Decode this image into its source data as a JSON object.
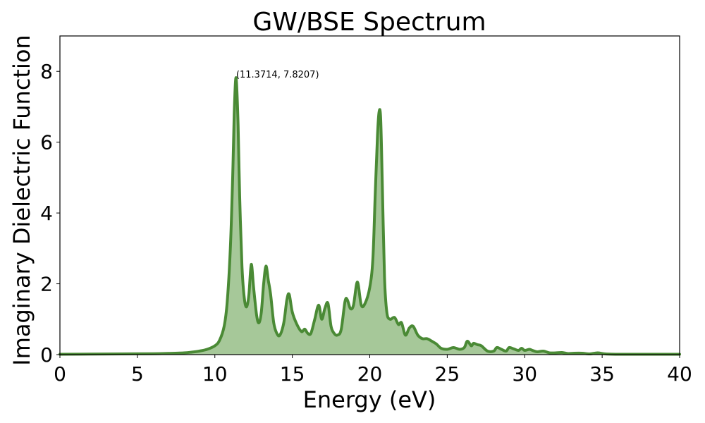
{
  "chart_data": {
    "type": "area",
    "title": "GW/BSE Spectrum",
    "xlabel": "Energy (eV)",
    "ylabel": "Imaginary Dielectric Function",
    "xlim": [
      0,
      40
    ],
    "ylim": [
      0,
      9
    ],
    "xticks": [
      0,
      5,
      10,
      15,
      20,
      25,
      30,
      35,
      40
    ],
    "yticks": [
      0,
      2,
      4,
      6,
      8
    ],
    "grid": false,
    "line_color": "#4a8a35",
    "fill_color": "#a6c899",
    "annotation": {
      "text": "(11.3714, 7.8207)",
      "x": 11.3714,
      "y": 7.8207
    },
    "series": [
      {
        "x": [
          0,
          2,
          4,
          6,
          7,
          8,
          8.5,
          9,
          9.5,
          10,
          10.3,
          10.6,
          10.8,
          11.0,
          11.15,
          11.25,
          11.37,
          11.5,
          11.6,
          11.75,
          11.9,
          12.05,
          12.2,
          12.35,
          12.5,
          12.7,
          12.85,
          13.0,
          13.15,
          13.3,
          13.45,
          13.6,
          13.8,
          14.0,
          14.2,
          14.45,
          14.65,
          14.8,
          15.0,
          15.3,
          15.6,
          15.8,
          16.0,
          16.2,
          16.45,
          16.7,
          16.9,
          17.1,
          17.3,
          17.5,
          17.7,
          17.9,
          18.15,
          18.4,
          18.55,
          18.75,
          18.95,
          19.2,
          19.45,
          19.7,
          20.0,
          20.2,
          20.35,
          20.5,
          20.6,
          20.7,
          20.8,
          20.95,
          21.1,
          21.3,
          21.6,
          21.85,
          22.05,
          22.3,
          22.55,
          22.8,
          23.1,
          23.4,
          23.7,
          24.0,
          24.3,
          24.6,
          25.0,
          25.4,
          25.8,
          26.1,
          26.3,
          26.55,
          26.7,
          26.95,
          27.2,
          27.6,
          28.0,
          28.2,
          28.5,
          28.8,
          29.0,
          29.3,
          29.6,
          29.8,
          30.0,
          30.3,
          30.5,
          30.8,
          31.2,
          31.6,
          32.0,
          32.4,
          32.8,
          33.2,
          33.7,
          34.2,
          34.7,
          35.2,
          36,
          37,
          38,
          40
        ],
        "y": [
          0.01,
          0.015,
          0.02,
          0.025,
          0.035,
          0.05,
          0.07,
          0.1,
          0.15,
          0.25,
          0.4,
          0.8,
          1.5,
          3.0,
          5.0,
          6.8,
          7.82,
          6.5,
          4.5,
          2.5,
          1.6,
          1.35,
          1.7,
          2.55,
          1.9,
          1.1,
          0.9,
          1.2,
          2.0,
          2.5,
          2.1,
          1.7,
          0.9,
          0.6,
          0.55,
          0.9,
          1.55,
          1.7,
          1.2,
          0.85,
          0.65,
          0.72,
          0.6,
          0.6,
          1.0,
          1.4,
          1.0,
          1.3,
          1.45,
          0.8,
          0.6,
          0.55,
          0.7,
          1.5,
          1.55,
          1.3,
          1.4,
          2.05,
          1.4,
          1.45,
          1.9,
          2.7,
          4.5,
          6.2,
          6.85,
          6.7,
          5.0,
          2.2,
          1.2,
          1.0,
          1.05,
          0.85,
          0.9,
          0.55,
          0.75,
          0.8,
          0.55,
          0.45,
          0.45,
          0.38,
          0.3,
          0.18,
          0.15,
          0.2,
          0.15,
          0.2,
          0.38,
          0.25,
          0.32,
          0.28,
          0.25,
          0.1,
          0.1,
          0.2,
          0.15,
          0.1,
          0.2,
          0.16,
          0.12,
          0.18,
          0.12,
          0.15,
          0.12,
          0.08,
          0.1,
          0.05,
          0.05,
          0.06,
          0.03,
          0.04,
          0.04,
          0.02,
          0.05,
          0.02,
          0.01,
          0.01,
          0.01,
          0.01
        ]
      }
    ]
  }
}
